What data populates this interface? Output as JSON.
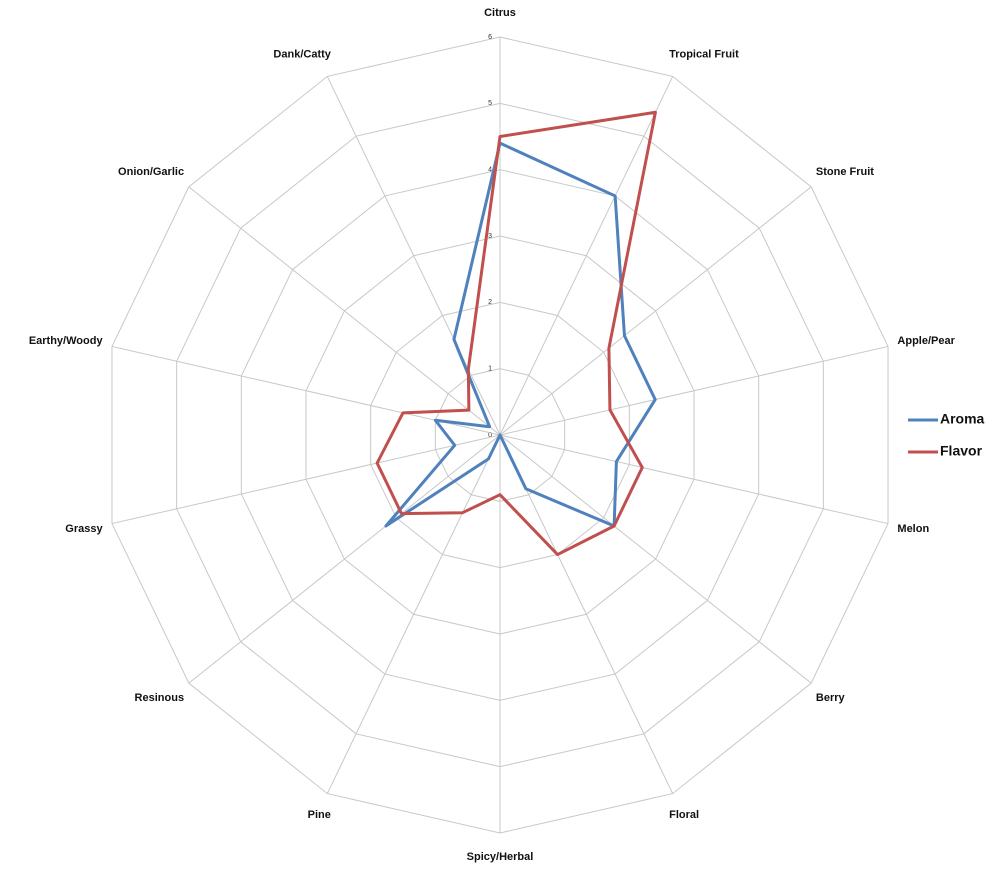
{
  "chart_data": {
    "type": "radar",
    "categories": [
      "Citrus",
      "Tropical Fruit",
      "Stone Fruit",
      "Apple/Pear",
      "Melon",
      "Berry",
      "Floral",
      "Spicy/Herbal",
      "Pine",
      "Resinous",
      "Grassy",
      "Earthy/Woody",
      "Onion/Garlic",
      "Dank/Catty"
    ],
    "series": [
      {
        "name": "Aroma",
        "color": "#4f81bd",
        "values": [
          4.4,
          4.0,
          2.4,
          2.4,
          1.8,
          2.2,
          0.9,
          0,
          0.4,
          2.2,
          0.7,
          1.0,
          0.2,
          1.6
        ]
      },
      {
        "name": "Flavor",
        "color": "#c0504d",
        "values": [
          4.5,
          5.4,
          2.1,
          1.7,
          2.2,
          2.2,
          2.0,
          0.9,
          1.3,
          1.9,
          1.9,
          1.5,
          0.6,
          1.1
        ]
      }
    ],
    "ylim": [
      0,
      6
    ],
    "yticks": [
      0,
      1,
      2,
      3,
      4,
      5,
      6
    ],
    "grid": true,
    "legend": "right"
  }
}
